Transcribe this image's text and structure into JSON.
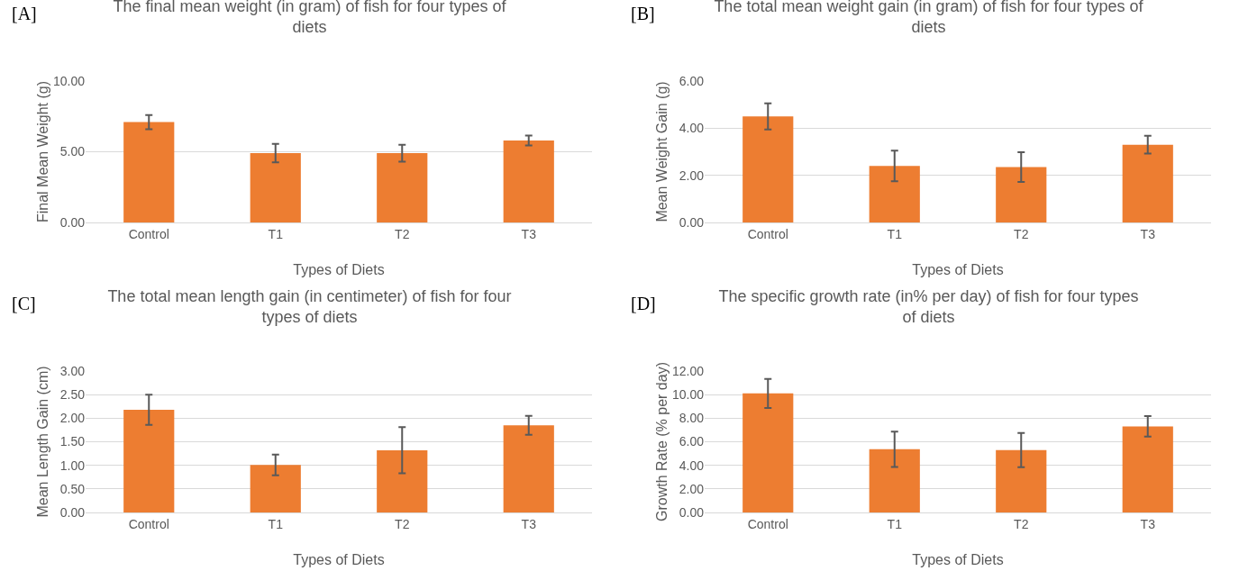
{
  "chart_data": [
    {
      "type": "bar",
      "title": "The final mean weight (in gram) of fish for four types of diets",
      "xlabel": "Types of Diets",
      "ylabel": "Final Mean Weight (g)",
      "annotations": [
        "[A]"
      ],
      "categories": [
        "Control",
        "T1",
        "T2",
        "T3"
      ],
      "values": [
        7.1,
        4.9,
        4.9,
        5.8
      ],
      "errors": [
        0.5,
        0.65,
        0.6,
        0.35
      ],
      "color": "#ed7d31",
      "ylim": [
        0,
        10
      ],
      "yticks": [
        {
          "value": 0,
          "label": "0.00"
        },
        {
          "value": 5,
          "label": "5.00"
        },
        {
          "value": 10,
          "label": "10.00"
        }
      ],
      "grid": "y"
    },
    {
      "type": "bar",
      "title": "The total mean weight gain (in gram) of fish for four types of diets",
      "xlabel": "Types of Diets",
      "ylabel": "Mean Weight Gain (g)",
      "annotations": [
        "[B]"
      ],
      "categories": [
        "Control",
        "T1",
        "T2",
        "T3"
      ],
      "values": [
        4.5,
        2.4,
        2.35,
        3.3
      ],
      "errors": [
        0.55,
        0.65,
        0.63,
        0.38
      ],
      "color": "#ed7d31",
      "ylim": [
        0,
        6
      ],
      "yticks": [
        {
          "value": 0,
          "label": "0.00"
        },
        {
          "value": 2,
          "label": "2.00"
        },
        {
          "value": 4,
          "label": "4.00"
        },
        {
          "value": 6,
          "label": "6.00"
        }
      ],
      "grid": "y"
    },
    {
      "type": "bar",
      "title": "The total mean length gain (in centimeter) of fish for four types of diets",
      "xlabel": "Types of Diets",
      "ylabel": "Mean Length Gain (cm)",
      "annotations": [
        "[C]"
      ],
      "categories": [
        "Control",
        "T1",
        "T2",
        "T3"
      ],
      "values": [
        2.18,
        1.01,
        1.32,
        1.85
      ],
      "errors": [
        0.32,
        0.22,
        0.49,
        0.2
      ],
      "color": "#ed7d31",
      "ylim": [
        0,
        3
      ],
      "yticks": [
        {
          "value": 0,
          "label": "0.00"
        },
        {
          "value": 0.5,
          "label": "0.50"
        },
        {
          "value": 1,
          "label": "1.00"
        },
        {
          "value": 1.5,
          "label": "1.50"
        },
        {
          "value": 2,
          "label": "2.00"
        },
        {
          "value": 2.5,
          "label": "2.50"
        },
        {
          "value": 3,
          "label": "3.00"
        }
      ],
      "grid": "y"
    },
    {
      "type": "bar",
      "title": "The specific growth rate (in% per day) of fish for four types of diets",
      "xlabel": "Types of Diets",
      "ylabel": "Growth Rate (% per day)",
      "annotations": [
        "[D]"
      ],
      "categories": [
        "Control",
        "T1",
        "T2",
        "T3"
      ],
      "values": [
        10.1,
        5.36,
        5.3,
        7.3
      ],
      "errors": [
        1.23,
        1.5,
        1.45,
        0.87
      ],
      "color": "#ed7d31",
      "ylim": [
        0,
        12
      ],
      "yticks": [
        {
          "value": 0,
          "label": "0.00"
        },
        {
          "value": 2,
          "label": "2.00"
        },
        {
          "value": 4,
          "label": "4.00"
        },
        {
          "value": 6,
          "label": "6.00"
        },
        {
          "value": 8,
          "label": "8.00"
        },
        {
          "value": 10,
          "label": "10.00"
        },
        {
          "value": 12,
          "label": "12.00"
        }
      ],
      "grid": "y"
    }
  ]
}
